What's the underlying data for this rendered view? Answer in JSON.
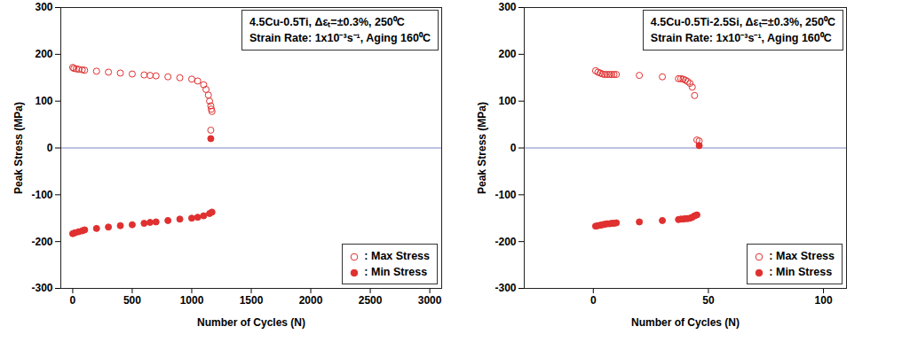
{
  "chart_data": [
    {
      "type": "scatter",
      "annotation": [
        "4.5Cu-0.5Ti, Δεₜ=±0.3%, 250⁰C",
        "Strain Rate: 1x10⁻³s⁻¹, Aging 160⁰C"
      ],
      "xlabel": "Number of Cycles (N)",
      "ylabel": "Peak Stress (MPa)",
      "xlim": [
        -100,
        3100
      ],
      "xticks": [
        0,
        500,
        1000,
        1500,
        2000,
        2500,
        3000
      ],
      "ylim": [
        -300,
        300
      ],
      "yticks": [
        -300,
        -200,
        -100,
        0,
        100,
        200,
        300
      ],
      "hline": 0,
      "legend": "lower right",
      "series": [
        {
          "name": ": Max Stress",
          "color": "#e03030",
          "marker": "open circle",
          "x": [
            0,
            10,
            30,
            50,
            80,
            100,
            200,
            300,
            400,
            500,
            600,
            650,
            700,
            800,
            900,
            1000,
            1050,
            1100,
            1120,
            1140,
            1150,
            1160,
            1165,
            1170,
            1160
          ],
          "values": [
            172,
            170,
            169,
            168,
            167,
            166,
            164,
            162,
            160,
            158,
            156,
            155,
            154,
            152,
            150,
            147,
            143,
            135,
            125,
            113,
            100,
            90,
            83,
            78,
            38
          ]
        },
        {
          "name": ": Min Stress",
          "color": "#e03030",
          "marker": "filled circle",
          "x": [
            0,
            20,
            50,
            80,
            100,
            200,
            300,
            400,
            500,
            600,
            650,
            700,
            800,
            900,
            1000,
            1050,
            1100,
            1150,
            1170,
            1160
          ],
          "values": [
            -183,
            -181,
            -179,
            -177,
            -175,
            -172,
            -169,
            -166,
            -164,
            -161,
            -159,
            -158,
            -155,
            -152,
            -150,
            -148,
            -145,
            -140,
            -137,
            20
          ]
        }
      ]
    },
    {
      "type": "scatter",
      "annotation": [
        "4.5Cu-0.5Ti-2.5Si, Δεₜ=±0.3%, 250⁰C",
        "Strain Rate: 1x10⁻³s⁻¹, Aging 160⁰C"
      ],
      "xlabel": "Number of Cycles (N)",
      "ylabel": "Peak Stress (MPa)",
      "xlim": [
        -30,
        110
      ],
      "xticks": [
        0,
        50,
        100
      ],
      "ylim": [
        -300,
        300
      ],
      "yticks": [
        -300,
        -200,
        -100,
        0,
        100,
        200,
        300
      ],
      "hline": 0,
      "legend": "lower right",
      "series": [
        {
          "name": ": Max Stress",
          "color": "#e03030",
          "marker": "open circle",
          "x": [
            1,
            2,
            3,
            4,
            5,
            6,
            7,
            8,
            9,
            10,
            20,
            30,
            37,
            38,
            39,
            40,
            41,
            42,
            43,
            44,
            45,
            46
          ],
          "values": [
            165,
            162,
            160,
            158,
            157,
            157,
            157,
            157,
            157,
            157,
            155,
            152,
            148,
            148,
            147,
            145,
            142,
            138,
            130,
            112,
            17,
            15
          ]
        },
        {
          "name": ": Min Stress",
          "color": "#e03030",
          "marker": "filled circle",
          "x": [
            1,
            2,
            3,
            4,
            5,
            6,
            7,
            8,
            9,
            10,
            20,
            30,
            37,
            38,
            39,
            40,
            41,
            42,
            43,
            44,
            45,
            46
          ],
          "values": [
            -167,
            -166,
            -165,
            -164,
            -163,
            -162,
            -162,
            -161,
            -161,
            -160,
            -158,
            -155,
            -153,
            -152,
            -152,
            -151,
            -151,
            -150,
            -148,
            -145,
            -143,
            5
          ]
        }
      ]
    }
  ]
}
